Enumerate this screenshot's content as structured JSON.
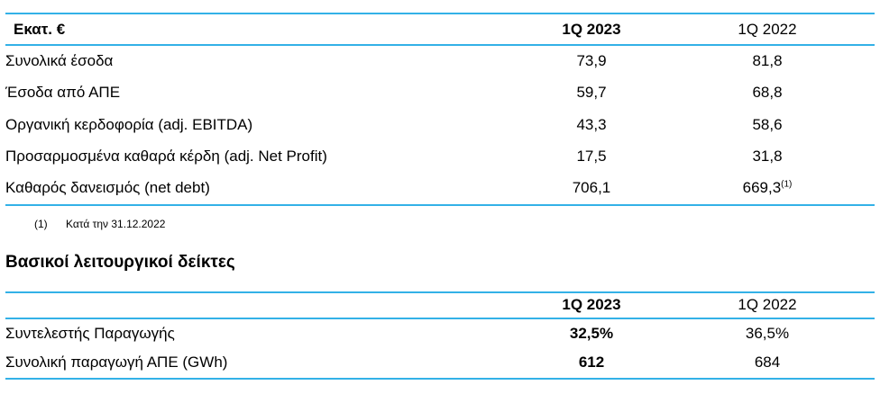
{
  "colors": {
    "rule_line": "#33b1e7",
    "text": "#000000"
  },
  "table1": {
    "header": {
      "metric": "Εκατ. €",
      "col_2023": "1Q 2023",
      "col_2022": "1Q 2022"
    },
    "rows": [
      {
        "label": "Συνολικά έσοδα",
        "q2023": "73,9",
        "q2022": "81,8"
      },
      {
        "label": "Έσοδα από ΑΠΕ",
        "q2023": "59,7",
        "q2022": "68,8"
      },
      {
        "label": "Οργανική κερδοφορία (adj. EBITDA)",
        "q2023": "43,3",
        "q2022": "58,6"
      },
      {
        "label": "Προσαρμοσμένα καθαρά κέρδη (adj. Net Profit)",
        "q2023": "17,5",
        "q2022": "31,8"
      },
      {
        "label": "Καθαρός δανεισμός (net debt)",
        "q2023": "706,1",
        "q2022": "669,3",
        "q2022_sup": "(1)"
      }
    ]
  },
  "footnote": {
    "marker": "(1)",
    "text": "Κατά την 31.12.2022"
  },
  "section_title": "Βασικοί λειτουργικοί δείκτες",
  "table2": {
    "header": {
      "metric": "",
      "col_2023": "1Q 2023",
      "col_2022": "1Q 2022"
    },
    "rows": [
      {
        "label": "Συντελεστής Παραγωγής",
        "q2023": "32,5%",
        "q2022": "36,5%"
      },
      {
        "label": "Συνολική παραγωγή ΑΠΕ (GWh)",
        "q2023": "612",
        "q2022": "684"
      }
    ]
  }
}
